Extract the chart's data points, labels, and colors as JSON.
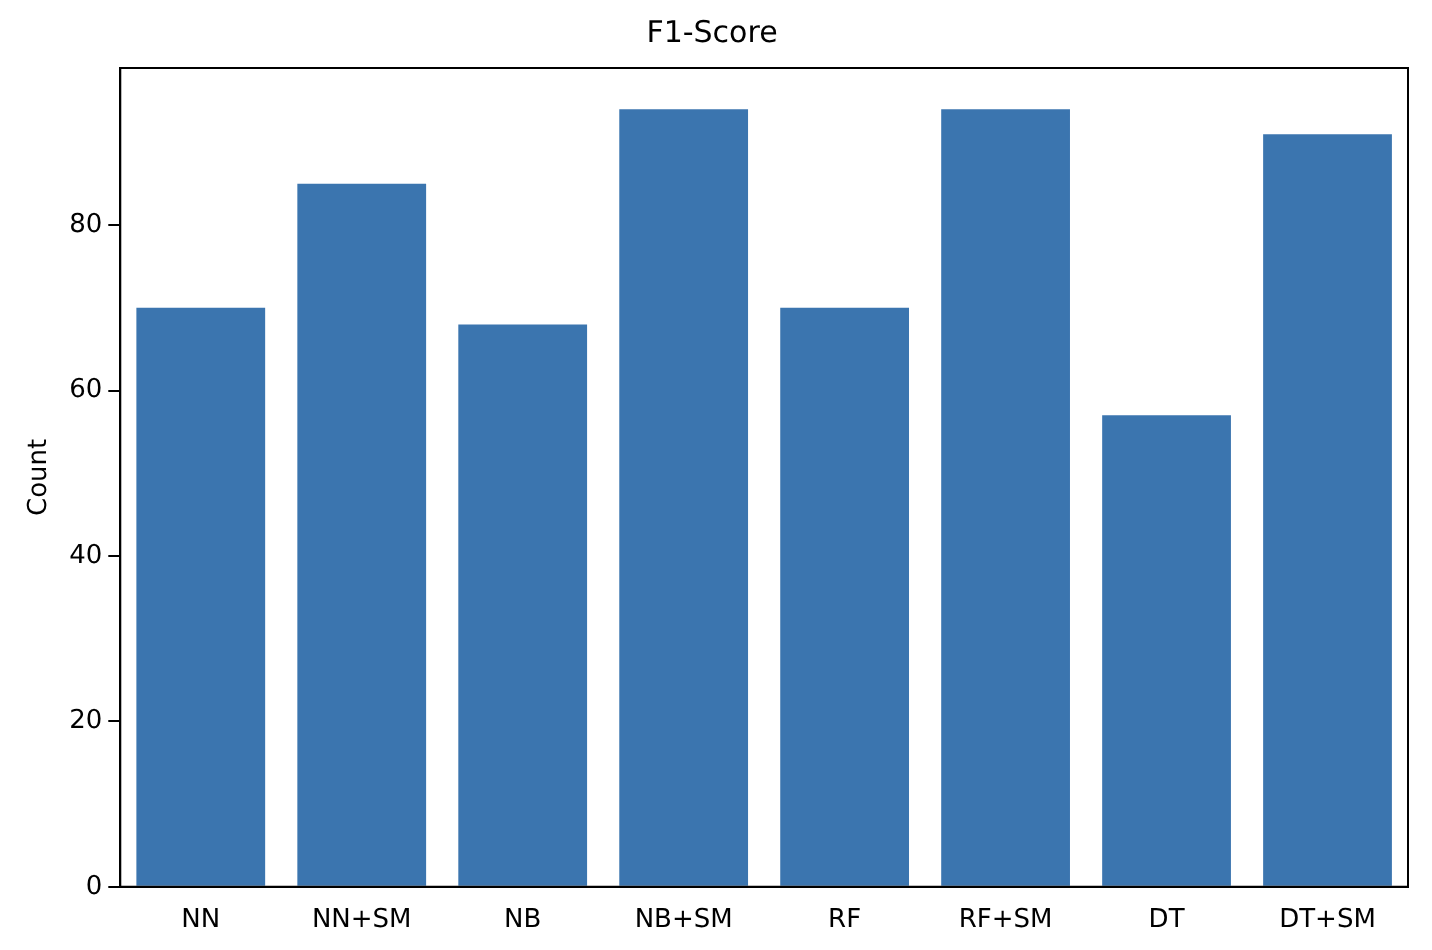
{
  "chart_data": {
    "type": "bar",
    "title": "F1-Score",
    "ylabel": "Count",
    "categories": [
      "NN",
      "NN+SM",
      "NB",
      "NB+SM",
      "RF",
      "RF+SM",
      "DT",
      "DT+SM"
    ],
    "values": [
      70,
      85,
      68,
      94,
      70,
      94,
      57,
      91
    ],
    "color": "#3b75af",
    "ylim": [
      0,
      99
    ],
    "yticks": [
      0,
      20,
      40,
      60,
      80
    ],
    "grid": false,
    "legend": false
  }
}
